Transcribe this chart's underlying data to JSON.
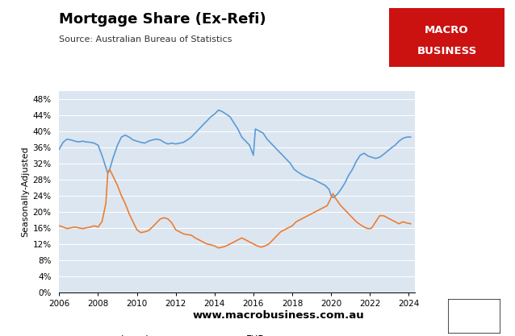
{
  "title": "Mortgage Share (Ex-Refi)",
  "subtitle": "Source: Australian Bureau of Statistics",
  "ylabel": "Seasonally-Adjusted",
  "website": "www.macrobusiness.com.au",
  "xlim": [
    2006,
    2024.3
  ],
  "ylim": [
    0,
    50
  ],
  "yticks": [
    0,
    4,
    8,
    12,
    16,
    20,
    24,
    28,
    32,
    36,
    40,
    44,
    48
  ],
  "xticks": [
    2006,
    2008,
    2010,
    2012,
    2014,
    2016,
    2018,
    2020,
    2022,
    2024
  ],
  "investor_color": "#5b9bd5",
  "fhb_color": "#ed7d31",
  "bg_color": "#dce6f1",
  "logo_bg": "#cc1111",
  "investors": [
    [
      2006.0,
      35.5
    ],
    [
      2006.2,
      37.2
    ],
    [
      2006.4,
      38.0
    ],
    [
      2006.6,
      37.8
    ],
    [
      2006.8,
      37.5
    ],
    [
      2007.0,
      37.3
    ],
    [
      2007.2,
      37.5
    ],
    [
      2007.4,
      37.3
    ],
    [
      2007.6,
      37.2
    ],
    [
      2007.8,
      37.0
    ],
    [
      2008.0,
      36.5
    ],
    [
      2008.2,
      34.0
    ],
    [
      2008.4,
      31.0
    ],
    [
      2008.5,
      29.5
    ],
    [
      2008.6,
      30.5
    ],
    [
      2008.75,
      33.0
    ],
    [
      2009.0,
      36.5
    ],
    [
      2009.2,
      38.5
    ],
    [
      2009.4,
      39.0
    ],
    [
      2009.6,
      38.5
    ],
    [
      2009.8,
      37.8
    ],
    [
      2010.0,
      37.5
    ],
    [
      2010.2,
      37.2
    ],
    [
      2010.4,
      37.0
    ],
    [
      2010.6,
      37.5
    ],
    [
      2010.8,
      37.8
    ],
    [
      2011.0,
      38.0
    ],
    [
      2011.2,
      37.8
    ],
    [
      2011.4,
      37.2
    ],
    [
      2011.6,
      36.8
    ],
    [
      2011.8,
      37.0
    ],
    [
      2012.0,
      36.8
    ],
    [
      2012.2,
      37.0
    ],
    [
      2012.4,
      37.2
    ],
    [
      2012.6,
      37.8
    ],
    [
      2012.8,
      38.5
    ],
    [
      2013.0,
      39.5
    ],
    [
      2013.2,
      40.5
    ],
    [
      2013.4,
      41.5
    ],
    [
      2013.6,
      42.5
    ],
    [
      2013.8,
      43.5
    ],
    [
      2014.0,
      44.2
    ],
    [
      2014.2,
      45.2
    ],
    [
      2014.4,
      44.8
    ],
    [
      2014.6,
      44.2
    ],
    [
      2014.8,
      43.5
    ],
    [
      2015.0,
      42.0
    ],
    [
      2015.2,
      40.5
    ],
    [
      2015.4,
      38.5
    ],
    [
      2015.6,
      37.5
    ],
    [
      2015.8,
      36.5
    ],
    [
      2016.0,
      34.0
    ],
    [
      2016.1,
      40.5
    ],
    [
      2016.3,
      40.0
    ],
    [
      2016.5,
      39.5
    ],
    [
      2016.7,
      38.0
    ],
    [
      2016.9,
      37.0
    ],
    [
      2017.1,
      36.0
    ],
    [
      2017.3,
      35.0
    ],
    [
      2017.5,
      34.0
    ],
    [
      2017.7,
      33.0
    ],
    [
      2017.9,
      32.0
    ],
    [
      2018.1,
      30.5
    ],
    [
      2018.3,
      29.8
    ],
    [
      2018.5,
      29.2
    ],
    [
      2018.7,
      28.7
    ],
    [
      2018.9,
      28.3
    ],
    [
      2019.1,
      28.0
    ],
    [
      2019.3,
      27.5
    ],
    [
      2019.5,
      27.0
    ],
    [
      2019.7,
      26.5
    ],
    [
      2019.9,
      25.5
    ],
    [
      2020.0,
      24.0
    ],
    [
      2020.1,
      23.5
    ],
    [
      2020.2,
      23.8
    ],
    [
      2020.35,
      24.5
    ],
    [
      2020.5,
      25.5
    ],
    [
      2020.7,
      27.0
    ],
    [
      2020.9,
      29.0
    ],
    [
      2021.1,
      30.5
    ],
    [
      2021.3,
      32.5
    ],
    [
      2021.5,
      34.0
    ],
    [
      2021.7,
      34.5
    ],
    [
      2021.9,
      33.8
    ],
    [
      2022.1,
      33.5
    ],
    [
      2022.3,
      33.2
    ],
    [
      2022.5,
      33.5
    ],
    [
      2022.7,
      34.2
    ],
    [
      2022.9,
      35.0
    ],
    [
      2023.1,
      35.8
    ],
    [
      2023.3,
      36.5
    ],
    [
      2023.5,
      37.5
    ],
    [
      2023.7,
      38.2
    ],
    [
      2023.9,
      38.5
    ],
    [
      2024.1,
      38.5
    ]
  ],
  "fhbs": [
    [
      2006.0,
      16.5
    ],
    [
      2006.2,
      16.2
    ],
    [
      2006.4,
      15.8
    ],
    [
      2006.6,
      16.0
    ],
    [
      2006.8,
      16.2
    ],
    [
      2007.0,
      16.0
    ],
    [
      2007.2,
      15.8
    ],
    [
      2007.4,
      16.0
    ],
    [
      2007.6,
      16.2
    ],
    [
      2007.8,
      16.5
    ],
    [
      2008.0,
      16.2
    ],
    [
      2008.2,
      17.5
    ],
    [
      2008.4,
      22.0
    ],
    [
      2008.5,
      29.5
    ],
    [
      2008.6,
      30.5
    ],
    [
      2008.75,
      29.0
    ],
    [
      2009.0,
      26.5
    ],
    [
      2009.2,
      24.0
    ],
    [
      2009.4,
      22.0
    ],
    [
      2009.6,
      19.5
    ],
    [
      2009.8,
      17.5
    ],
    [
      2010.0,
      15.5
    ],
    [
      2010.2,
      14.8
    ],
    [
      2010.4,
      15.0
    ],
    [
      2010.6,
      15.3
    ],
    [
      2010.8,
      16.2
    ],
    [
      2011.0,
      17.2
    ],
    [
      2011.2,
      18.2
    ],
    [
      2011.4,
      18.5
    ],
    [
      2011.6,
      18.2
    ],
    [
      2011.8,
      17.2
    ],
    [
      2012.0,
      15.5
    ],
    [
      2012.2,
      15.0
    ],
    [
      2012.4,
      14.5
    ],
    [
      2012.6,
      14.3
    ],
    [
      2012.8,
      14.2
    ],
    [
      2013.0,
      13.5
    ],
    [
      2013.2,
      13.0
    ],
    [
      2013.4,
      12.5
    ],
    [
      2013.6,
      12.0
    ],
    [
      2013.8,
      11.8
    ],
    [
      2014.0,
      11.5
    ],
    [
      2014.2,
      11.0
    ],
    [
      2014.4,
      11.2
    ],
    [
      2014.6,
      11.5
    ],
    [
      2014.8,
      12.0
    ],
    [
      2015.0,
      12.5
    ],
    [
      2015.2,
      13.0
    ],
    [
      2015.4,
      13.5
    ],
    [
      2015.6,
      13.0
    ],
    [
      2015.8,
      12.5
    ],
    [
      2016.0,
      12.0
    ],
    [
      2016.2,
      11.5
    ],
    [
      2016.4,
      11.2
    ],
    [
      2016.6,
      11.5
    ],
    [
      2016.8,
      12.0
    ],
    [
      2017.0,
      13.0
    ],
    [
      2017.2,
      14.0
    ],
    [
      2017.4,
      15.0
    ],
    [
      2017.6,
      15.5
    ],
    [
      2017.8,
      16.0
    ],
    [
      2018.0,
      16.5
    ],
    [
      2018.2,
      17.5
    ],
    [
      2018.4,
      18.0
    ],
    [
      2018.6,
      18.5
    ],
    [
      2018.8,
      19.0
    ],
    [
      2019.0,
      19.5
    ],
    [
      2019.2,
      20.0
    ],
    [
      2019.4,
      20.5
    ],
    [
      2019.6,
      21.0
    ],
    [
      2019.8,
      21.5
    ],
    [
      2020.0,
      23.5
    ],
    [
      2020.1,
      24.5
    ],
    [
      2020.2,
      23.5
    ],
    [
      2020.35,
      22.5
    ],
    [
      2020.5,
      21.5
    ],
    [
      2020.7,
      20.5
    ],
    [
      2020.9,
      19.5
    ],
    [
      2021.1,
      18.5
    ],
    [
      2021.3,
      17.5
    ],
    [
      2021.5,
      16.8
    ],
    [
      2021.7,
      16.2
    ],
    [
      2021.9,
      15.8
    ],
    [
      2022.0,
      15.8
    ],
    [
      2022.1,
      16.0
    ],
    [
      2022.3,
      17.5
    ],
    [
      2022.5,
      19.0
    ],
    [
      2022.7,
      19.0
    ],
    [
      2022.9,
      18.5
    ],
    [
      2023.1,
      18.0
    ],
    [
      2023.3,
      17.5
    ],
    [
      2023.5,
      17.0
    ],
    [
      2023.7,
      17.5
    ],
    [
      2023.9,
      17.2
    ],
    [
      2024.1,
      17.0
    ]
  ]
}
